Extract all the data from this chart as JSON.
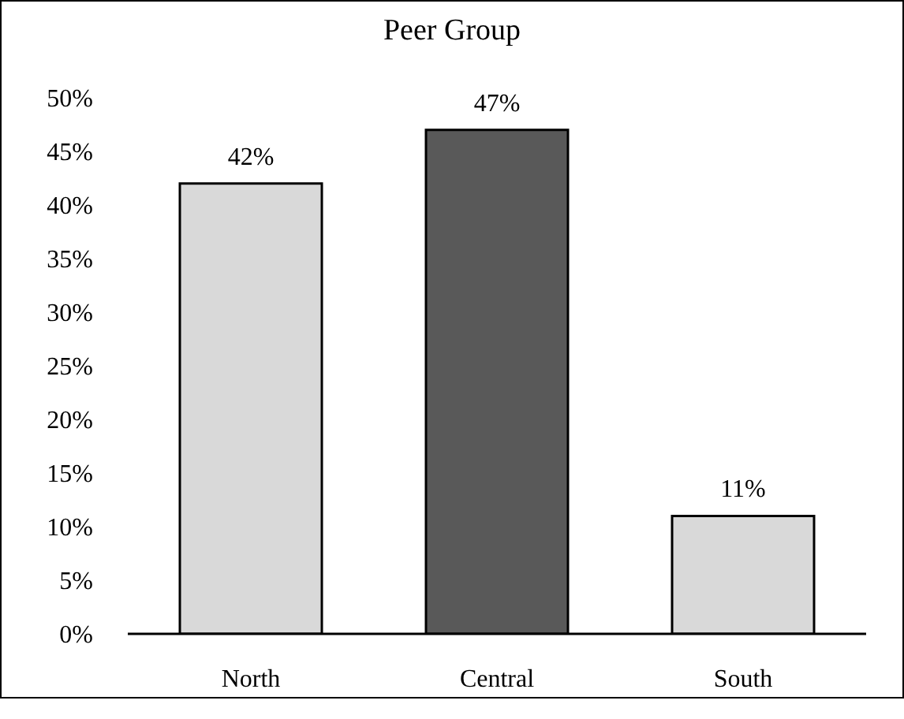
{
  "chart_data": {
    "type": "bar",
    "title": "Peer Group",
    "categories": [
      "North",
      "Central",
      "South"
    ],
    "values": [
      42,
      47,
      11
    ],
    "colors": [
      "#d9d9d9",
      "#595959",
      "#d9d9d9"
    ],
    "value_labels": [
      "42%",
      "47%",
      "11%"
    ],
    "ylim": [
      0,
      50
    ],
    "yticks": [
      {
        "value": 0,
        "label": "0%"
      },
      {
        "value": 5,
        "label": "5%"
      },
      {
        "value": 10,
        "label": "10%"
      },
      {
        "value": 15,
        "label": "15%"
      },
      {
        "value": 20,
        "label": "20%"
      },
      {
        "value": 25,
        "label": "25%"
      },
      {
        "value": 30,
        "label": "30%"
      },
      {
        "value": 35,
        "label": "35%"
      },
      {
        "value": 40,
        "label": "40%"
      },
      {
        "value": 45,
        "label": "45%"
      },
      {
        "value": 50,
        "label": "50%"
      }
    ],
    "grid": false,
    "legend": false
  }
}
